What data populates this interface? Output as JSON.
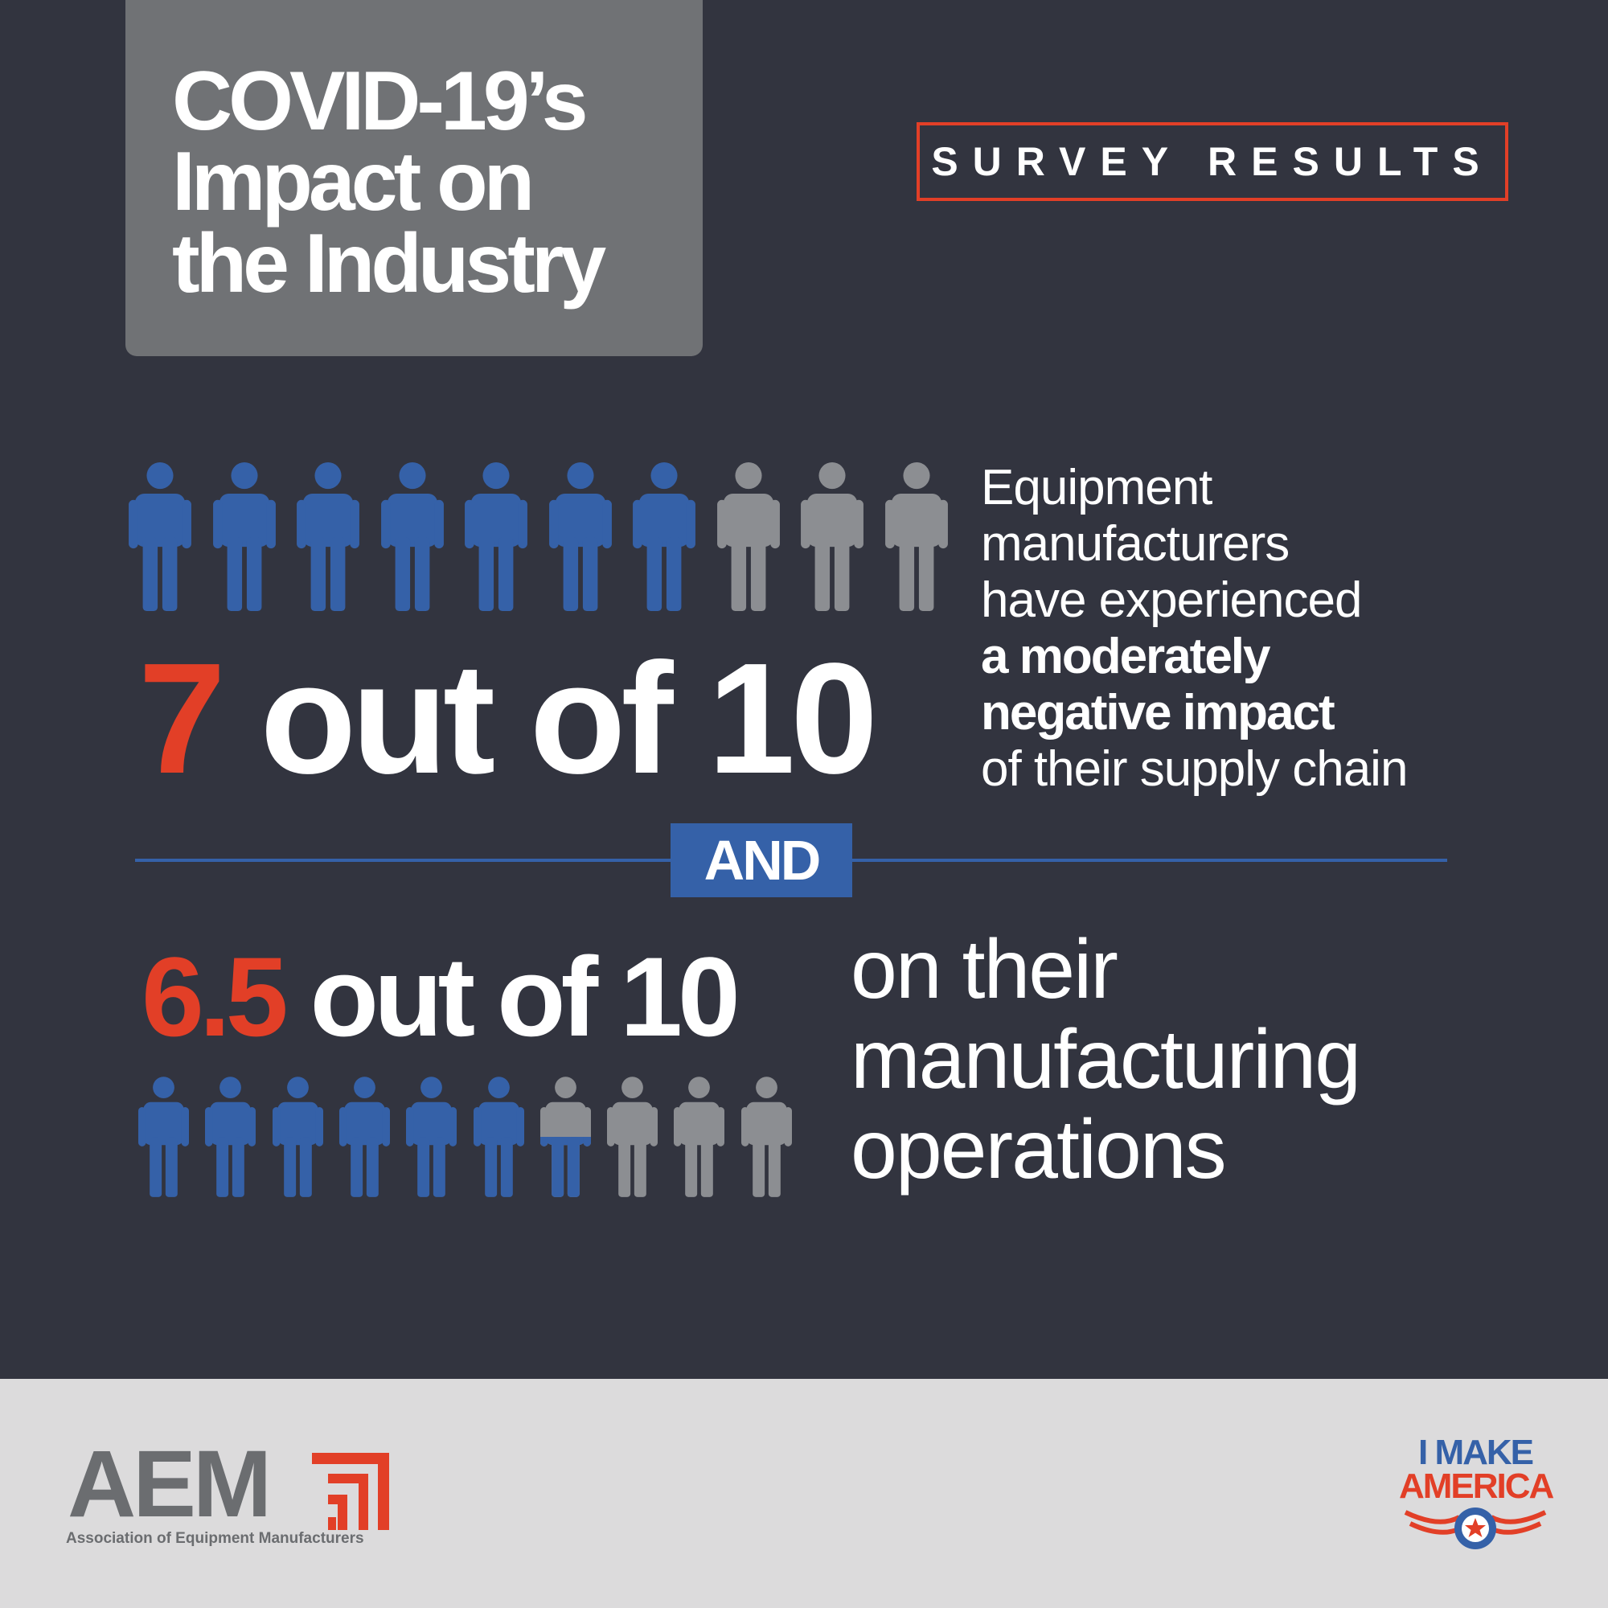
{
  "title": {
    "lines": [
      "COVID-19’s",
      "Impact on",
      "the Industry"
    ]
  },
  "badge": {
    "label": "SURVEY RESULTS"
  },
  "stat1": {
    "highlight": "7",
    "rest": "out of 10",
    "fraction": 0.7,
    "description": {
      "lines": [
        "Equipment",
        "manufacturers",
        "have experienced"
      ],
      "bold_lines": [
        "a moderately",
        "negative impact"
      ],
      "last_line": "of their supply chain"
    }
  },
  "divider": {
    "label": "AND"
  },
  "stat2": {
    "highlight": "6.5",
    "rest": "out of 10",
    "fraction": 0.65,
    "description": {
      "lines": [
        "on their",
        "manufacturing",
        "operations"
      ]
    }
  },
  "footer": {
    "aem_logo_text": "AEM",
    "aem_tagline": "Association of Equipment Manufacturers",
    "partner_logo": {
      "line1": "I MAKE",
      "line2": "AMERICA"
    }
  },
  "colors": {
    "background": "#32343f",
    "accent_red": "#e23f27",
    "blue": "#3561a8",
    "gray_figure": "#8c8e92",
    "title_box": "#707275",
    "footer": "#dcdbdc"
  },
  "icons": [
    "person-icon",
    "aem-logo-mark",
    "i-make-america-emblem"
  ]
}
